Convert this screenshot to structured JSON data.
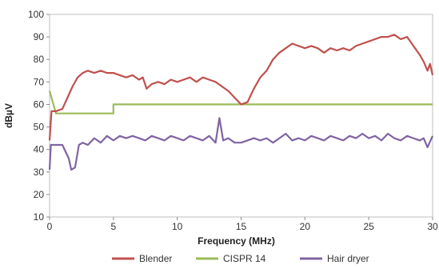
{
  "chart_data": {
    "type": "line",
    "title": "",
    "xlabel": "Frequency (MHz)",
    "ylabel": "dBµV",
    "xlim": [
      0,
      30
    ],
    "ylim": [
      10,
      100
    ],
    "xticks": [
      "0",
      "5",
      "10",
      "15",
      "20",
      "25",
      "30"
    ],
    "yticks": [
      "10",
      "20",
      "30",
      "40",
      "50",
      "60",
      "70",
      "80",
      "90",
      "100"
    ],
    "grid": false,
    "legend_position": "bottom",
    "series": [
      {
        "name": "Blender",
        "color": "#c0504d",
        "points": [
          [
            0.0,
            44
          ],
          [
            0.15,
            57
          ],
          [
            0.5,
            57
          ],
          [
            1.0,
            58
          ],
          [
            1.4,
            63
          ],
          [
            1.8,
            68
          ],
          [
            2.2,
            72
          ],
          [
            2.6,
            74
          ],
          [
            3.0,
            75
          ],
          [
            3.5,
            74
          ],
          [
            4.0,
            75
          ],
          [
            4.5,
            74
          ],
          [
            5.0,
            74
          ],
          [
            5.5,
            73
          ],
          [
            6.0,
            72
          ],
          [
            6.5,
            73
          ],
          [
            7.0,
            71
          ],
          [
            7.3,
            72
          ],
          [
            7.6,
            67
          ],
          [
            8.0,
            69
          ],
          [
            8.5,
            70
          ],
          [
            9.0,
            69
          ],
          [
            9.5,
            71
          ],
          [
            10.0,
            70
          ],
          [
            10.5,
            71
          ],
          [
            11.0,
            72
          ],
          [
            11.5,
            70
          ],
          [
            12.0,
            72
          ],
          [
            12.5,
            71
          ],
          [
            13.0,
            70
          ],
          [
            13.5,
            68
          ],
          [
            14.0,
            66
          ],
          [
            14.5,
            63
          ],
          [
            15.0,
            60
          ],
          [
            15.5,
            61
          ],
          [
            16.0,
            67
          ],
          [
            16.5,
            72
          ],
          [
            17.0,
            75
          ],
          [
            17.5,
            80
          ],
          [
            18.0,
            83
          ],
          [
            18.5,
            85
          ],
          [
            19.0,
            87
          ],
          [
            19.5,
            86
          ],
          [
            20.0,
            85
          ],
          [
            20.5,
            86
          ],
          [
            21.0,
            85
          ],
          [
            21.5,
            83
          ],
          [
            22.0,
            85
          ],
          [
            22.5,
            84
          ],
          [
            23.0,
            85
          ],
          [
            23.5,
            84
          ],
          [
            24.0,
            86
          ],
          [
            24.5,
            87
          ],
          [
            25.0,
            88
          ],
          [
            25.5,
            89
          ],
          [
            26.0,
            90
          ],
          [
            26.5,
            90
          ],
          [
            27.0,
            91
          ],
          [
            27.5,
            89
          ],
          [
            28.0,
            90
          ],
          [
            28.5,
            86
          ],
          [
            29.0,
            82
          ],
          [
            29.3,
            79
          ],
          [
            29.6,
            75
          ],
          [
            29.8,
            78
          ],
          [
            30.0,
            73
          ]
        ]
      },
      {
        "name": "CISPR 14",
        "color": "#9bbb59",
        "points": [
          [
            0.0,
            66
          ],
          [
            0.5,
            56
          ],
          [
            5.0,
            56
          ],
          [
            5.0,
            60
          ],
          [
            30.0,
            60
          ]
        ]
      },
      {
        "name": "Hair dryer",
        "color": "#8064a2",
        "points": [
          [
            0.0,
            31
          ],
          [
            0.1,
            42
          ],
          [
            0.5,
            42
          ],
          [
            1.0,
            42
          ],
          [
            1.5,
            36
          ],
          [
            1.7,
            31
          ],
          [
            2.0,
            32
          ],
          [
            2.3,
            42
          ],
          [
            2.6,
            43
          ],
          [
            3.0,
            42
          ],
          [
            3.5,
            45
          ],
          [
            4.0,
            43
          ],
          [
            4.5,
            46
          ],
          [
            5.0,
            44
          ],
          [
            5.5,
            46
          ],
          [
            6.0,
            45
          ],
          [
            6.5,
            46
          ],
          [
            7.0,
            45
          ],
          [
            7.5,
            44
          ],
          [
            8.0,
            46
          ],
          [
            8.5,
            45
          ],
          [
            9.0,
            44
          ],
          [
            9.5,
            46
          ],
          [
            10.0,
            45
          ],
          [
            10.5,
            44
          ],
          [
            11.0,
            46
          ],
          [
            11.5,
            45
          ],
          [
            12.0,
            44
          ],
          [
            12.5,
            46
          ],
          [
            13.0,
            43
          ],
          [
            13.3,
            54
          ],
          [
            13.6,
            44
          ],
          [
            14.0,
            45
          ],
          [
            14.5,
            43
          ],
          [
            15.0,
            43
          ],
          [
            15.5,
            44
          ],
          [
            16.0,
            45
          ],
          [
            16.5,
            44
          ],
          [
            17.0,
            45
          ],
          [
            17.5,
            43
          ],
          [
            18.0,
            45
          ],
          [
            18.5,
            47
          ],
          [
            19.0,
            44
          ],
          [
            19.5,
            45
          ],
          [
            20.0,
            44
          ],
          [
            20.5,
            46
          ],
          [
            21.0,
            45
          ],
          [
            21.5,
            44
          ],
          [
            22.0,
            46
          ],
          [
            22.5,
            45
          ],
          [
            23.0,
            44
          ],
          [
            23.5,
            46
          ],
          [
            24.0,
            45
          ],
          [
            24.5,
            47
          ],
          [
            25.0,
            45
          ],
          [
            25.5,
            46
          ],
          [
            26.0,
            44
          ],
          [
            26.5,
            47
          ],
          [
            27.0,
            45
          ],
          [
            27.5,
            44
          ],
          [
            28.0,
            46
          ],
          [
            28.5,
            45
          ],
          [
            29.0,
            44
          ],
          [
            29.3,
            45
          ],
          [
            29.6,
            41
          ],
          [
            30.0,
            46
          ]
        ]
      }
    ]
  }
}
